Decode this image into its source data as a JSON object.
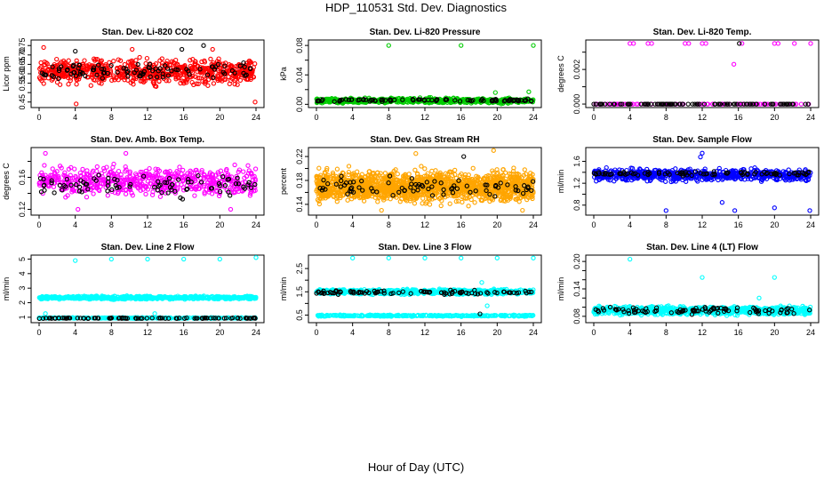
{
  "page": {
    "title": "HDP_110531  Std. Dev. Diagnostics",
    "xlabel": "Hour of Day (UTC)"
  },
  "colors": {
    "red": "#ff0000",
    "green": "#00cc00",
    "magenta": "#ff00ff",
    "orange": "#ffa500",
    "blue": "#0000ff",
    "cyan": "#00ffff",
    "black": "#000000"
  },
  "chart_data": [
    {
      "type": "scatter",
      "title": "Stan. Dev. Li-820 CO2",
      "ylabel": "Licor ppm",
      "xlim": [
        0,
        24
      ],
      "xticks": [
        0,
        4,
        8,
        12,
        16,
        20,
        24
      ],
      "ylim": [
        0.43,
        0.77
      ],
      "yticks": [
        0.45,
        0.5,
        0.55,
        0.6,
        0.65,
        0.7,
        0.75
      ],
      "ytick_labels": [
        "0.45",
        "",
        "0.55",
        "0.60",
        "0.65",
        "0.70",
        "0.75"
      ],
      "series": [
        {
          "color": "red",
          "band": [
            0.52,
            0.7
          ],
          "n": 700,
          "outliers": [
            [
              4.1,
              0.44
            ],
            [
              23.9,
              0.45
            ],
            [
              0.5,
              0.74
            ],
            [
              10.3,
              0.73
            ],
            [
              19.2,
              0.73
            ]
          ]
        },
        {
          "color": "black",
          "band": [
            0.55,
            0.68
          ],
          "n": 95,
          "outliers": [
            [
              18.2,
              0.75
            ],
            [
              4.0,
              0.72
            ],
            [
              15.8,
              0.73
            ]
          ]
        }
      ]
    },
    {
      "type": "scatter",
      "title": "Stan. Dev. Li-820 Pressure",
      "ylabel": "kPa",
      "xlim": [
        0,
        24
      ],
      "xticks": [
        0,
        4,
        8,
        12,
        16,
        20,
        24
      ],
      "ylim": [
        -0.002,
        0.085
      ],
      "yticks": [
        0.0,
        0.02,
        0.04,
        0.06,
        0.08
      ],
      "ytick_labels": [
        "0.00",
        "",
        "0.04",
        "",
        "0.08"
      ],
      "series": [
        {
          "color": "green",
          "band": [
            0.0,
            0.01
          ],
          "n": 600,
          "outliers": [
            [
              8.0,
              0.08
            ],
            [
              16.0,
              0.08
            ],
            [
              24.0,
              0.08
            ],
            [
              19.8,
              0.016
            ],
            [
              23.5,
              0.017
            ]
          ]
        },
        {
          "color": "black",
          "band": [
            0.003,
            0.008
          ],
          "n": 90,
          "outliers": []
        }
      ]
    },
    {
      "type": "scatter",
      "title": "Stan. Dev. Li-820 Temp.",
      "ylabel": "degrees C",
      "xlim": [
        0,
        24
      ],
      "xticks": [
        0,
        4,
        8,
        12,
        16,
        20,
        24
      ],
      "ylim": [
        -0.0001,
        0.0036
      ],
      "yticks": [
        0.0,
        0.001,
        0.002,
        0.003
      ],
      "ytick_labels": [
        "0.000",
        "",
        "0.002",
        ""
      ],
      "series": [
        {
          "color": "magenta",
          "band": [
            0.0,
            0.0
          ],
          "n": 90,
          "outliers": [
            [
              4.0,
              0.0035
            ],
            [
              4.4,
              0.0035
            ],
            [
              6.0,
              0.0035
            ],
            [
              6.4,
              0.0035
            ],
            [
              10.1,
              0.0035
            ],
            [
              10.5,
              0.0035
            ],
            [
              12.0,
              0.0035
            ],
            [
              12.4,
              0.0035
            ],
            [
              15.5,
              0.0023
            ],
            [
              16.4,
              0.0035
            ],
            [
              20.0,
              0.0035
            ],
            [
              20.4,
              0.0035
            ],
            [
              22.2,
              0.0035
            ],
            [
              24.0,
              0.0035
            ]
          ]
        },
        {
          "color": "black",
          "band": [
            0.0,
            0.0
          ],
          "n": 95,
          "outliers": [
            [
              16.1,
              0.0035
            ]
          ]
        }
      ]
    },
    {
      "type": "scatter",
      "title": "Stan. Dev. Amb. Box Temp.",
      "ylabel": "degrees C",
      "xlim": [
        0,
        24
      ],
      "xticks": [
        0,
        4,
        8,
        12,
        16,
        20,
        24
      ],
      "ylim": [
        0.115,
        0.195
      ],
      "yticks": [
        0.12,
        0.14,
        0.16,
        0.18
      ],
      "ytick_labels": [
        "0.12",
        "",
        "0.16",
        ""
      ],
      "series": [
        {
          "color": "magenta",
          "band": [
            0.13,
            0.18
          ],
          "n": 600,
          "outliers": [
            [
              0.7,
              0.19
            ],
            [
              4.3,
              0.12
            ],
            [
              9.6,
              0.19
            ],
            [
              21.2,
              0.12
            ]
          ]
        },
        {
          "color": "black",
          "band": [
            0.13,
            0.17
          ],
          "n": 85,
          "outliers": []
        }
      ]
    },
    {
      "type": "scatter",
      "title": "Stan. Dev. Gas Stream RH",
      "ylabel": "percent",
      "xlim": [
        0,
        24
      ],
      "xticks": [
        0,
        4,
        8,
        12,
        16,
        20,
        24
      ],
      "ylim": [
        0.125,
        0.232
      ],
      "yticks": [
        0.14,
        0.16,
        0.18,
        0.2,
        0.22
      ],
      "ytick_labels": [
        "0.14",
        "",
        "0.18",
        "",
        "0.22"
      ],
      "series": [
        {
          "color": "orange",
          "band": [
            0.135,
            0.205
          ],
          "n": 1600,
          "outliers": [
            [
              11.0,
              0.225
            ],
            [
              19.6,
              0.23
            ],
            [
              7.2,
              0.13
            ],
            [
              22.8,
              0.13
            ]
          ]
        },
        {
          "color": "black",
          "band": [
            0.145,
            0.195
          ],
          "n": 80,
          "outliers": [
            [
              16.3,
              0.22
            ]
          ]
        }
      ]
    },
    {
      "type": "scatter",
      "title": "Stan. Dev. Sample Flow",
      "ylabel": "ml/min",
      "xlim": [
        0,
        24
      ],
      "xticks": [
        0,
        4,
        8,
        12,
        16,
        20,
        24
      ],
      "ylim": [
        0.65,
        1.82
      ],
      "yticks": [
        0.8,
        1.0,
        1.2,
        1.4,
        1.6
      ],
      "ytick_labels": [
        "0.8",
        "",
        "1.2",
        "",
        "1.6"
      ],
      "series": [
        {
          "color": "blue",
          "band": [
            1.2,
            1.5
          ],
          "n": 650,
          "outliers": [
            [
              8.0,
              0.7
            ],
            [
              15.6,
              0.7
            ],
            [
              23.9,
              0.7
            ],
            [
              14.2,
              0.85
            ],
            [
              20.0,
              0.75
            ],
            [
              12.0,
              1.75
            ],
            [
              11.8,
              1.68
            ]
          ]
        },
        {
          "color": "black",
          "band": [
            1.33,
            1.43
          ],
          "n": 90,
          "outliers": []
        }
      ]
    },
    {
      "type": "scatter",
      "title": "Stan. Dev. Line 2 Flow",
      "ylabel": "ml/min",
      "xlim": [
        0,
        24
      ],
      "xticks": [
        0,
        4,
        8,
        12,
        16,
        20,
        24
      ],
      "ylim": [
        0.75,
        5.15
      ],
      "yticks": [
        1,
        2,
        3,
        4,
        5
      ],
      "ytick_labels": [
        "1",
        "2",
        "3",
        "4",
        "5"
      ],
      "series": [
        {
          "color": "cyan",
          "band": [
            2.2,
            2.5
          ],
          "n": 600,
          "outliers": [
            [
              4.0,
              4.9
            ],
            [
              8.0,
              5.0
            ],
            [
              12.0,
              5.0
            ],
            [
              16.0,
              5.0
            ],
            [
              20.0,
              5.0
            ],
            [
              24.0,
              5.1
            ],
            [
              0.7,
              1.25
            ],
            [
              12.8,
              1.25
            ]
          ]
        },
        {
          "color": "cyan",
          "band": [
            0.9,
            1.0
          ],
          "n": 300,
          "outliers": []
        },
        {
          "color": "black",
          "band": [
            0.9,
            0.97
          ],
          "n": 95,
          "outliers": []
        }
      ]
    },
    {
      "type": "scatter",
      "title": "Stan. Dev. Line 3 Flow",
      "ylabel": "ml/min",
      "xlim": [
        0,
        24
      ],
      "xticks": [
        0,
        4,
        8,
        12,
        16,
        20,
        24
      ],
      "ylim": [
        0.25,
        3.0
      ],
      "yticks": [
        0.5,
        1.0,
        1.5,
        2.0,
        2.5
      ],
      "ytick_labels": [
        "0.5",
        "",
        "1.5",
        "",
        "2.5"
      ],
      "series": [
        {
          "color": "cyan",
          "band": [
            1.35,
            1.65
          ],
          "n": 600,
          "outliers": [
            [
              4.0,
              2.95
            ],
            [
              8.0,
              2.95
            ],
            [
              12.0,
              2.95
            ],
            [
              16.0,
              2.95
            ],
            [
              20.0,
              2.95
            ],
            [
              24.0,
              2.95
            ],
            [
              18.3,
              1.9
            ],
            [
              18.9,
              0.9
            ]
          ]
        },
        {
          "color": "cyan",
          "band": [
            0.43,
            0.52
          ],
          "n": 300,
          "outliers": []
        },
        {
          "color": "black",
          "band": [
            1.35,
            1.6
          ],
          "n": 90,
          "outliers": [
            [
              18.1,
              0.55
            ]
          ]
        }
      ]
    },
    {
      "type": "scatter",
      "title": "Stan. Dev. Line 4 (LT) Flow",
      "ylabel": "ml/min",
      "xlim": [
        0,
        24
      ],
      "xticks": [
        0,
        4,
        8,
        12,
        16,
        20,
        24
      ],
      "ylim": [
        0.07,
        0.21
      ],
      "yticks": [
        0.08,
        0.1,
        0.12,
        0.14,
        0.16,
        0.18,
        0.2
      ],
      "ytick_labels": [
        "0.08",
        "",
        "",
        "0.14",
        "",
        "",
        "0.20"
      ],
      "series": [
        {
          "color": "cyan",
          "band": [
            0.08,
            0.105
          ],
          "n": 900,
          "outliers": [
            [
              4.0,
              0.205
            ],
            [
              12.0,
              0.165
            ],
            [
              20.0,
              0.165
            ],
            [
              18.3,
              0.12
            ]
          ]
        },
        {
          "color": "black",
          "band": [
            0.082,
            0.104
          ],
          "n": 90,
          "outliers": []
        }
      ]
    }
  ]
}
